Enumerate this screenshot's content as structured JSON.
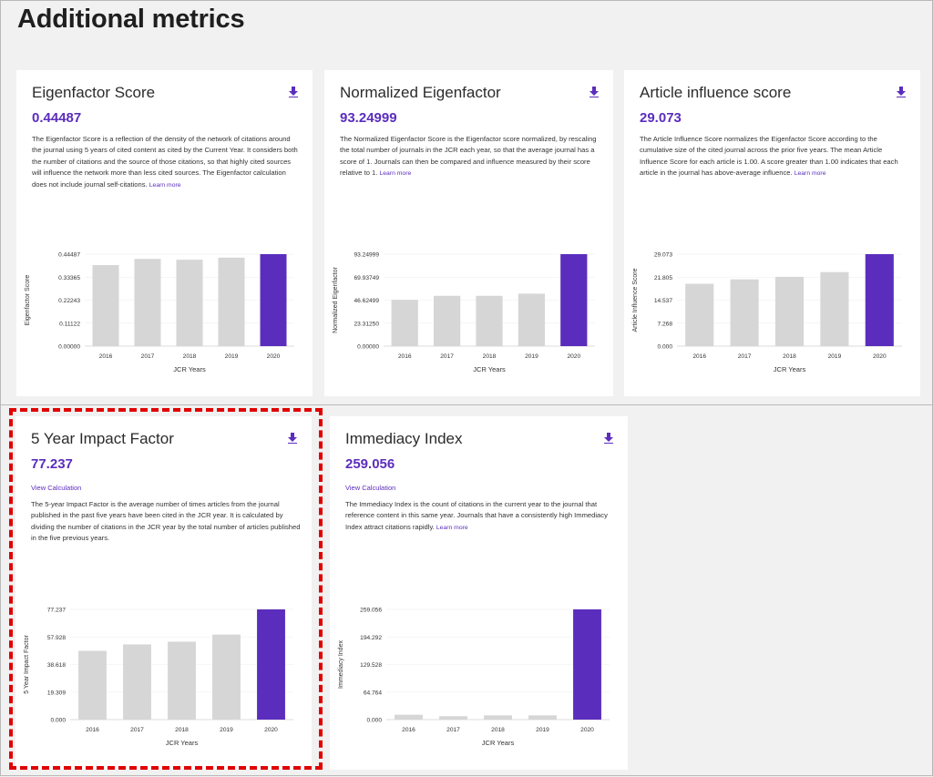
{
  "section_title": "Additional metrics",
  "colors": {
    "accent": "#5b2dbd",
    "bar_grey": "#d6d6d6",
    "highlight": "#e10000"
  },
  "icons": {
    "download": "download-icon"
  },
  "cards": [
    {
      "id": "eigenfactor",
      "title": "Eigenfactor Score",
      "value": "0.44487",
      "description": "The Eigenfactor Score is a reflection of the density of the network of citations around the journal using 5 years of cited content as cited by the Current Year. It considers both the number of citations and the source of those citations, so that highly cited sources will influence the network more than less cited sources. The Eigenfactor calculation does not include journal self-citations.",
      "learn_more": "Learn more"
    },
    {
      "id": "normalized-eigenfactor",
      "title": "Normalized Eigenfactor",
      "value": "93.24999",
      "description": "The Normalized Eigenfactor Score is the Eigenfactor score normalized, by rescaling the total number of journals in the JCR each year, so that the average journal has a score of 1. Journals can then be compared and influence measured by their score relative to 1.",
      "learn_more": "Learn more"
    },
    {
      "id": "article-influence",
      "title": "Article influence score",
      "value": "29.073",
      "description": "The Article Influence Score normalizes the Eigenfactor Score according to the cumulative size of the cited journal across the prior five years. The mean Article Influence Score for each article is 1.00. A score greater than 1.00 indicates that each article in the journal has above-average influence.",
      "learn_more": "Learn more"
    },
    {
      "id": "five-year-if",
      "title": "5 Year Impact Factor",
      "value": "77.237",
      "view_calculation": "View Calculation",
      "description": "The 5-year Impact Factor is the average number of times articles from the journal published in the past five years have been cited in the JCR year. It is calculated by dividing the number of citations in the JCR year by the total number of articles published in the five previous years.",
      "learn_more": ""
    },
    {
      "id": "immediacy",
      "title": "Immediacy Index",
      "value": "259.056",
      "view_calculation": "View Calculation",
      "description": "The Immediacy Index is the count of citations in the current year to the journal that reference content in this same year. Journals that have a consistently high Immediacy Index attract citations rapidly.",
      "learn_more": "Learn more"
    }
  ],
  "chart_data": [
    {
      "type": "bar",
      "categories": [
        "2016",
        "2017",
        "2018",
        "2019",
        "2020"
      ],
      "values": [
        0.392,
        0.422,
        0.418,
        0.428,
        0.44487
      ],
      "xlabel": "JCR Years",
      "ylabel": "Eigenfactor Score",
      "yticks": [
        "0.00000",
        "0.11122",
        "0.22243",
        "0.33365",
        "0.44487"
      ],
      "ylim": [
        0,
        0.44487
      ],
      "highlight_index": 4
    },
    {
      "type": "bar",
      "categories": [
        "2016",
        "2017",
        "2018",
        "2019",
        "2020"
      ],
      "values": [
        46.9,
        51.0,
        51.0,
        53.2,
        93.24999
      ],
      "xlabel": "JCR Years",
      "ylabel": "Normalized Eigenfactor",
      "yticks": [
        "0.00000",
        "23.31250",
        "46.62499",
        "69.93749",
        "93.24999"
      ],
      "ylim": [
        0,
        93.24999
      ],
      "highlight_index": 4
    },
    {
      "type": "bar",
      "categories": [
        "2016",
        "2017",
        "2018",
        "2019",
        "2020"
      ],
      "values": [
        19.7,
        21.1,
        21.9,
        23.4,
        29.073
      ],
      "xlabel": "JCR Years",
      "ylabel": "Article Influence Score",
      "yticks": [
        "0.000",
        "7.268",
        "14.537",
        "21.805",
        "29.073"
      ],
      "ylim": [
        0,
        29.073
      ],
      "highlight_index": 4
    },
    {
      "type": "bar",
      "categories": [
        "2016",
        "2017",
        "2018",
        "2019",
        "2020"
      ],
      "values": [
        48.2,
        52.7,
        54.6,
        59.6,
        77.237
      ],
      "xlabel": "JCR Years",
      "ylabel": "5 Year Impact Factor",
      "yticks": [
        "0.000",
        "19.309",
        "38.618",
        "57.928",
        "77.237"
      ],
      "ylim": [
        0,
        77.237
      ],
      "highlight_index": 4
    },
    {
      "type": "bar",
      "categories": [
        "2016",
        "2017",
        "2018",
        "2019",
        "2020"
      ],
      "values": [
        11.5,
        8.0,
        10.0,
        10.0,
        259.056
      ],
      "xlabel": "JCR Years",
      "ylabel": "Immediacy Index",
      "yticks": [
        "0.000",
        "64.764",
        "129.528",
        "194.292",
        "259.056"
      ],
      "ylim": [
        0,
        259.056
      ],
      "highlight_index": 4
    }
  ]
}
